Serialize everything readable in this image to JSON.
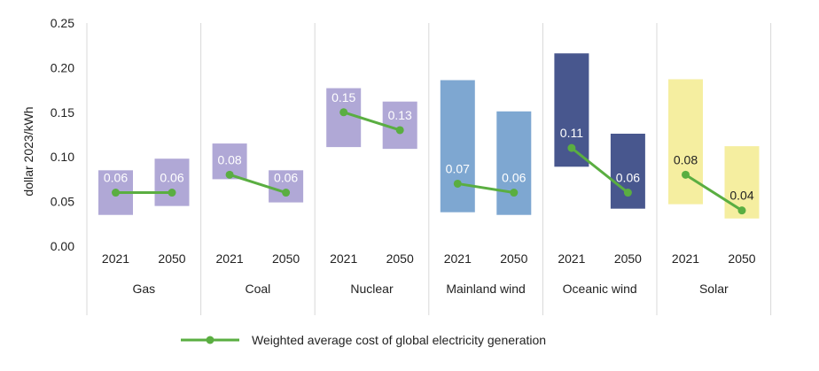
{
  "chart_data": {
    "type": "bar",
    "title": "",
    "ylabel": "dollar 2023/kWh",
    "ylim": [
      0,
      0.25
    ],
    "y_ticks": [
      "0.00",
      "0.05",
      "0.10",
      "0.15",
      "0.20",
      "0.25"
    ],
    "grid": false,
    "groups": [
      {
        "name": "Gas",
        "color": "#b0a8d6",
        "years": [
          "2021",
          "2050"
        ],
        "ranges": [
          [
            0.035,
            0.085
          ],
          [
            0.045,
            0.098
          ]
        ],
        "weighted_average": [
          0.06,
          0.06
        ],
        "labels": [
          "0.06",
          "0.06"
        ]
      },
      {
        "name": "Coal",
        "color": "#b0a8d6",
        "years": [
          "2021",
          "2050"
        ],
        "ranges": [
          [
            0.075,
            0.115
          ],
          [
            0.049,
            0.085
          ]
        ],
        "weighted_average": [
          0.08,
          0.06
        ],
        "labels": [
          "0.08",
          "0.06"
        ]
      },
      {
        "name": "Nuclear",
        "color": "#b0a8d6",
        "years": [
          "2021",
          "2050"
        ],
        "ranges": [
          [
            0.111,
            0.177
          ],
          [
            0.109,
            0.162
          ]
        ],
        "weighted_average": [
          0.15,
          0.13
        ],
        "labels": [
          "0.15",
          "0.13"
        ]
      },
      {
        "name": "Mainland wind",
        "color": "#7ea7d1",
        "years": [
          "2021",
          "2050"
        ],
        "ranges": [
          [
            0.038,
            0.186
          ],
          [
            0.035,
            0.151
          ]
        ],
        "weighted_average": [
          0.07,
          0.06
        ],
        "labels": [
          "0.07",
          "0.06"
        ]
      },
      {
        "name": "Oceanic wind",
        "color": "#48578e",
        "years": [
          "2021",
          "2050"
        ],
        "ranges": [
          [
            0.089,
            0.216
          ],
          [
            0.042,
            0.126
          ]
        ],
        "weighted_average": [
          0.11,
          0.06
        ],
        "labels": [
          "0.11",
          "0.06"
        ]
      },
      {
        "name": "Solar",
        "color": "#f5eea0",
        "years": [
          "2021",
          "2050"
        ],
        "ranges": [
          [
            0.047,
            0.187
          ],
          [
            0.031,
            0.112
          ]
        ],
        "weighted_average": [
          0.08,
          0.04
        ],
        "labels": [
          "0.08",
          "0.04"
        ]
      }
    ],
    "series": [
      {
        "name": "Weighted average cost of global electricity generation",
        "color": "#5aae41"
      }
    ],
    "legend_position": "bottom"
  }
}
